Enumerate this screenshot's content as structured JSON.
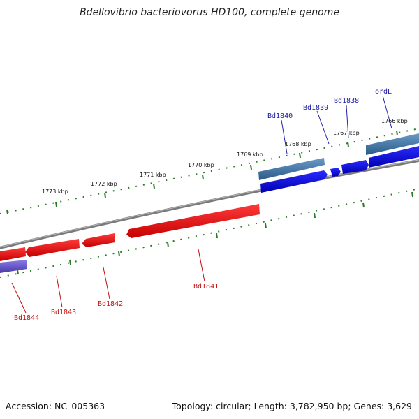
{
  "title": "Bdellovibrio bacteriovorus HD100, complete genome",
  "footer": {
    "accession": "Accession: NC_005363",
    "summary": "Topology: circular; Length: 3,782,950 bp; Genes: 3,629"
  },
  "colors": {
    "forward_cds": "#0a0ae8",
    "forward_rna": "#4a78a8",
    "reverse_cds": "#f01414",
    "reverse_other": "#6a5ad0",
    "backbone": "#7a7a7a",
    "ticks": "#2a7a2a",
    "forward_label": "#1a1aa0",
    "reverse_label": "#c01010"
  },
  "scale": {
    "unit": "kbp",
    "ticks": [
      "1766 kbp",
      "1767 kbp",
      "1768 kbp",
      "1769 kbp",
      "1770 kbp",
      "1771 kbp",
      "1772 kbp",
      "1773 kbp"
    ]
  },
  "genes": {
    "forward": [
      "ordL",
      "Bd1838",
      "Bd1839",
      "Bd1840"
    ],
    "reverse": [
      "Bd1841",
      "Bd1842",
      "Bd1843",
      "Bd1844"
    ]
  }
}
